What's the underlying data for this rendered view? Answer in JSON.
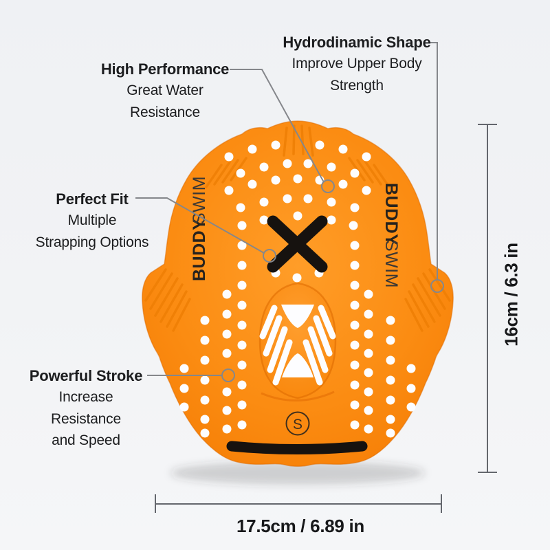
{
  "product": {
    "brand_bold": "BUDDY",
    "brand_light": "SWIM",
    "size_mark": "S"
  },
  "callouts": {
    "hydrodynamic_shape": {
      "title": "Hydrodinamic Shape",
      "lines": [
        "Improve Upper Body",
        "Strength"
      ]
    },
    "high_performance": {
      "title": "High Performance",
      "lines": [
        "Great Water",
        "Resistance"
      ]
    },
    "perfect_fit": {
      "title": "Perfect Fit",
      "lines": [
        "Multiple",
        "Strapping Options"
      ]
    },
    "powerful_stroke": {
      "title": "Powerful Stroke",
      "lines": [
        "Increase",
        "Resistance",
        "and Speed"
      ]
    }
  },
  "dimensions": {
    "height_label": "16cm / 6.3 in",
    "width_label": "17.5cm / 6.89 in"
  },
  "colors": {
    "paddle_orange": "#fb8c12",
    "paddle_ridge": "#ee7e04",
    "strap_black": "#16120f",
    "hole_white": "#fdfdff",
    "callout_line": "#85878b",
    "dimension_line": "#64676d",
    "label_text": "#1c1d1f",
    "background": "#f2f3f5"
  }
}
